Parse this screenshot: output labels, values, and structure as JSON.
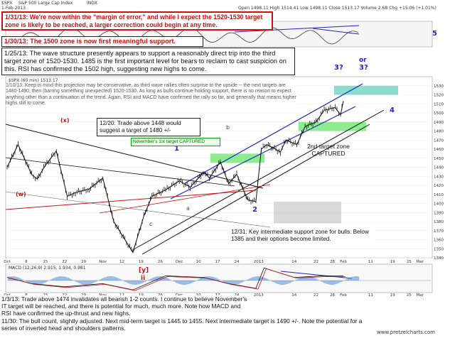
{
  "header": {
    "ticker": "$SPX",
    "name": "S&P 500 Large Cap Index",
    "exchange": "INDX",
    "date": "1-Feb-2013",
    "ohlc": "Open 1498.11  High 1514.41  Low 1498.11  Close 1513.17  Volume 2.6B  Chg +15.06 (+1.01%)"
  },
  "notes": {
    "n1": "1/31/13:  We're now within the \"margin of error,\" and while I expect the 1520-1530 target zone is likely to be reached, a larger correction could begin at any time.",
    "n2": "1/30/13:  The 1500 zone is now first meaningful support.",
    "n3": "1/25/13:  The wave structure presently appears to support a reasonably direct trip into the third target zone of 1520-1530.  1485 is the first important level for bears to reclaim to cast suspicion on this.  RSI has confirmed the 1502 high, suggesting new highs to come.",
    "n4": "1/10/13:  Keep in mind this projection may be conservative, as third wave rallies often surprise to the upside -- the next targets are 1480-1490, then (barring something unexpected) 1520-1530.  As long as bulls continue holding support, there is no reason to expect anything other than a continuation of the trend.  Again, RSI and MACD have confirmed the rally so far, and generally that means higher highs still to come.",
    "n5": "12/20:  Trade above 1448 would suggest a target of 1480 +/-",
    "n6": "November's 1st target CAPTURED",
    "n7": "2nd target zone CAPTURED",
    "n8": "12/31:  Key intermediate support zone for bulls.  Below 1385 and their options become limited.",
    "n9": "1/3/13:  Trade above 1474 invalidates all bearish 1-2 counts.  I continue to believe November's IT target will be reached, and there is potential for much, much more.  Note how MACD and RSI have confirmed the up-thrust and new highs.",
    "n10": "11/30:  The bull count, slightly adjusted.  Next mid-term target is 1445 to 1455.  Next intermediate target is 1490 +/-.  Note the potential for a series of inverted head and shoulders patterns."
  },
  "panels": {
    "main_label": "$SPX (60 min) 1513.17",
    "macd_label": "MACD (12,26,9) 2.915, 1.934, 0.981"
  },
  "wave_labels": {
    "or": "or",
    "three_q": "3?",
    "five": "5",
    "four": "4",
    "one": "1",
    "two": "2",
    "y": "[y]",
    "ii": "ii",
    "x": "(x)",
    "w": "(w)",
    "a": "a",
    "b": "b",
    "c": "c"
  },
  "watermark": "www.pretzelcharts.com",
  "chart_data": {
    "type": "line",
    "title": "$SPX S&P 500 Large Cap Index",
    "timeframe": "60 min",
    "x_ticks": [
      "Oct",
      "8",
      "15",
      "22",
      "29",
      "Nov",
      "12",
      "19",
      "26",
      "Dec",
      "10",
      "17",
      "24",
      "2013",
      "14",
      "22",
      "28",
      "Feb",
      "11",
      "19",
      "25",
      "Mar"
    ],
    "y_ticks": [
      1530,
      1520,
      1510,
      1500,
      1490,
      1480,
      1470,
      1460,
      1450,
      1440,
      1430,
      1420,
      1410,
      1400,
      1390,
      1380,
      1370,
      1360,
      1350,
      1340
    ],
    "ylim": [
      1340,
      1540
    ],
    "series": [
      {
        "name": "$SPX",
        "x": [
          "Oct 1",
          "Oct 5",
          "Oct 10",
          "Oct 12",
          "Oct 15",
          "Oct 19",
          "Oct 23",
          "Oct 26",
          "Oct 31",
          "Nov 5",
          "Nov 9",
          "Nov 16",
          "Nov 20",
          "Nov 23",
          "Nov 28",
          "Dec 3",
          "Dec 7",
          "Dec 12",
          "Dec 14",
          "Dec 18",
          "Dec 21",
          "Dec 24",
          "Dec 28",
          "Dec 31",
          "Jan 2",
          "Jan 4",
          "Jan 9",
          "Jan 11",
          "Jan 15",
          "Jan 18",
          "Jan 22",
          "Jan 25",
          "Jan 29",
          "Jan 31",
          "Feb 1"
        ],
        "values": [
          1440,
          1465,
          1432,
          1427,
          1442,
          1458,
          1408,
          1412,
          1416,
          1428,
          1380,
          1346,
          1386,
          1408,
          1415,
          1425,
          1418,
          1435,
          1428,
          1446,
          1422,
          1432,
          1404,
          1402,
          1460,
          1465,
          1457,
          1470,
          1465,
          1485,
          1490,
          1503,
          1506,
          1498,
          1513
        ]
      },
      {
        "name": "MACD (12,26,9)",
        "x": [
          "Oct 1",
          "Oct 10",
          "Oct 22",
          "Nov 5",
          "Nov 16",
          "Nov 28",
          "Dec 12",
          "Dec 21",
          "Dec 31",
          "Jan 3",
          "Jan 14",
          "Jan 25",
          "Feb 1"
        ],
        "values": [
          2,
          -2,
          -4,
          -2,
          -6,
          3,
          2,
          -2,
          -5,
          8,
          2,
          3,
          2.9
        ]
      }
    ],
    "target_zones": [
      {
        "label": "1520-1530",
        "low": 1520,
        "high": 1530,
        "color": "#3fc7a8"
      },
      {
        "label": "1480-1490",
        "low": 1480,
        "high": 1490,
        "color": "#44dd44"
      },
      {
        "label": "1445-1455",
        "low": 1445,
        "high": 1455,
        "color": "#44dd44"
      },
      {
        "label": "support",
        "low": 1378,
        "high": 1402,
        "color": "#aaaaaa"
      }
    ]
  }
}
